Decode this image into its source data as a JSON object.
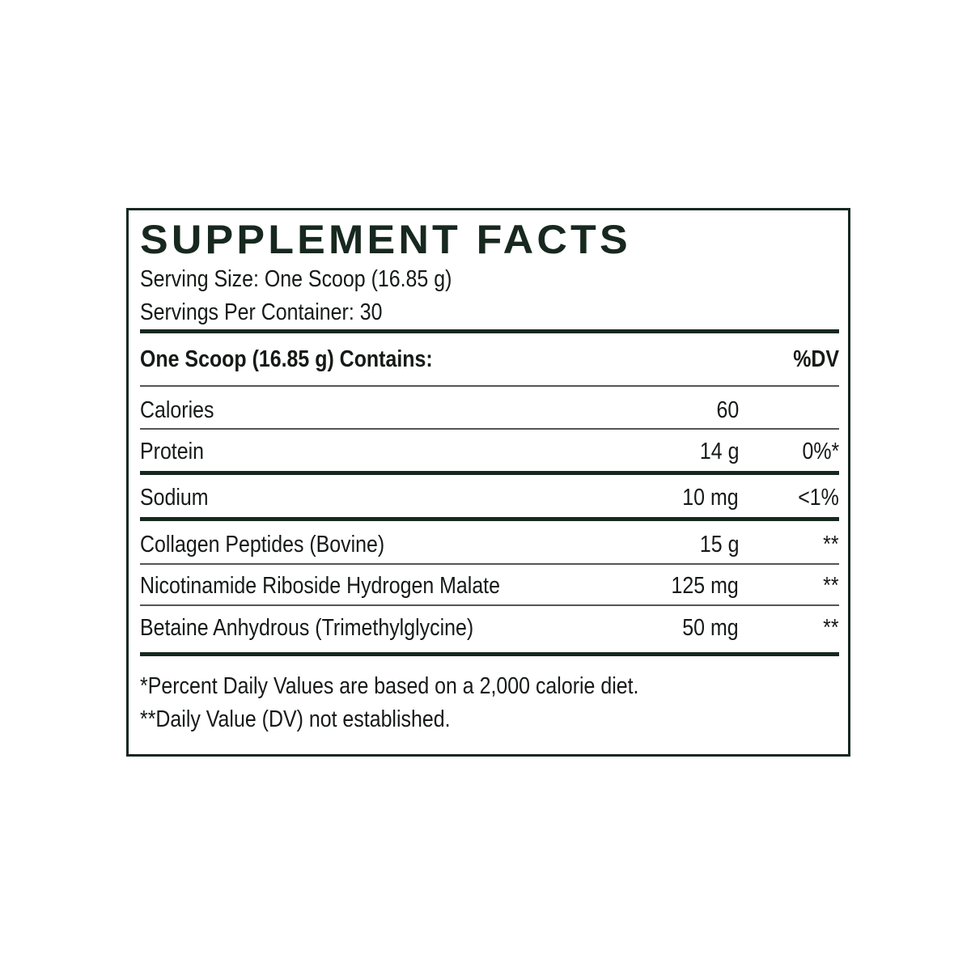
{
  "title": "SUPPLEMENT FACTS",
  "serving_size": "Serving Size: One Scoop (16.85 g)",
  "servings_per_container": "Servings Per Container: 30",
  "header": {
    "label": "One Scoop (16.85 g) Contains:",
    "dv": "%DV"
  },
  "rows": [
    {
      "name": "Calories",
      "amount": "60",
      "dv": ""
    },
    {
      "name": "Protein",
      "amount": "14 g",
      "dv": "0%*"
    },
    {
      "name": "Sodium",
      "amount": "10 mg",
      "dv": "<1%"
    },
    {
      "name": "Collagen Peptides (Bovine)",
      "amount": "15 g",
      "dv": "**"
    },
    {
      "name": "Nicotinamide Riboside Hydrogen Malate",
      "amount": "125 mg",
      "dv": "**"
    },
    {
      "name": "Betaine Anhydrous (Trimethylglycine)",
      "amount": "50 mg",
      "dv": "**"
    }
  ],
  "footnotes": [
    "*Percent Daily Values are based on a 2,000 calorie diet.",
    "**Daily Value (DV) not established."
  ],
  "colors": {
    "border": "#17281f",
    "text": "#161a17"
  }
}
